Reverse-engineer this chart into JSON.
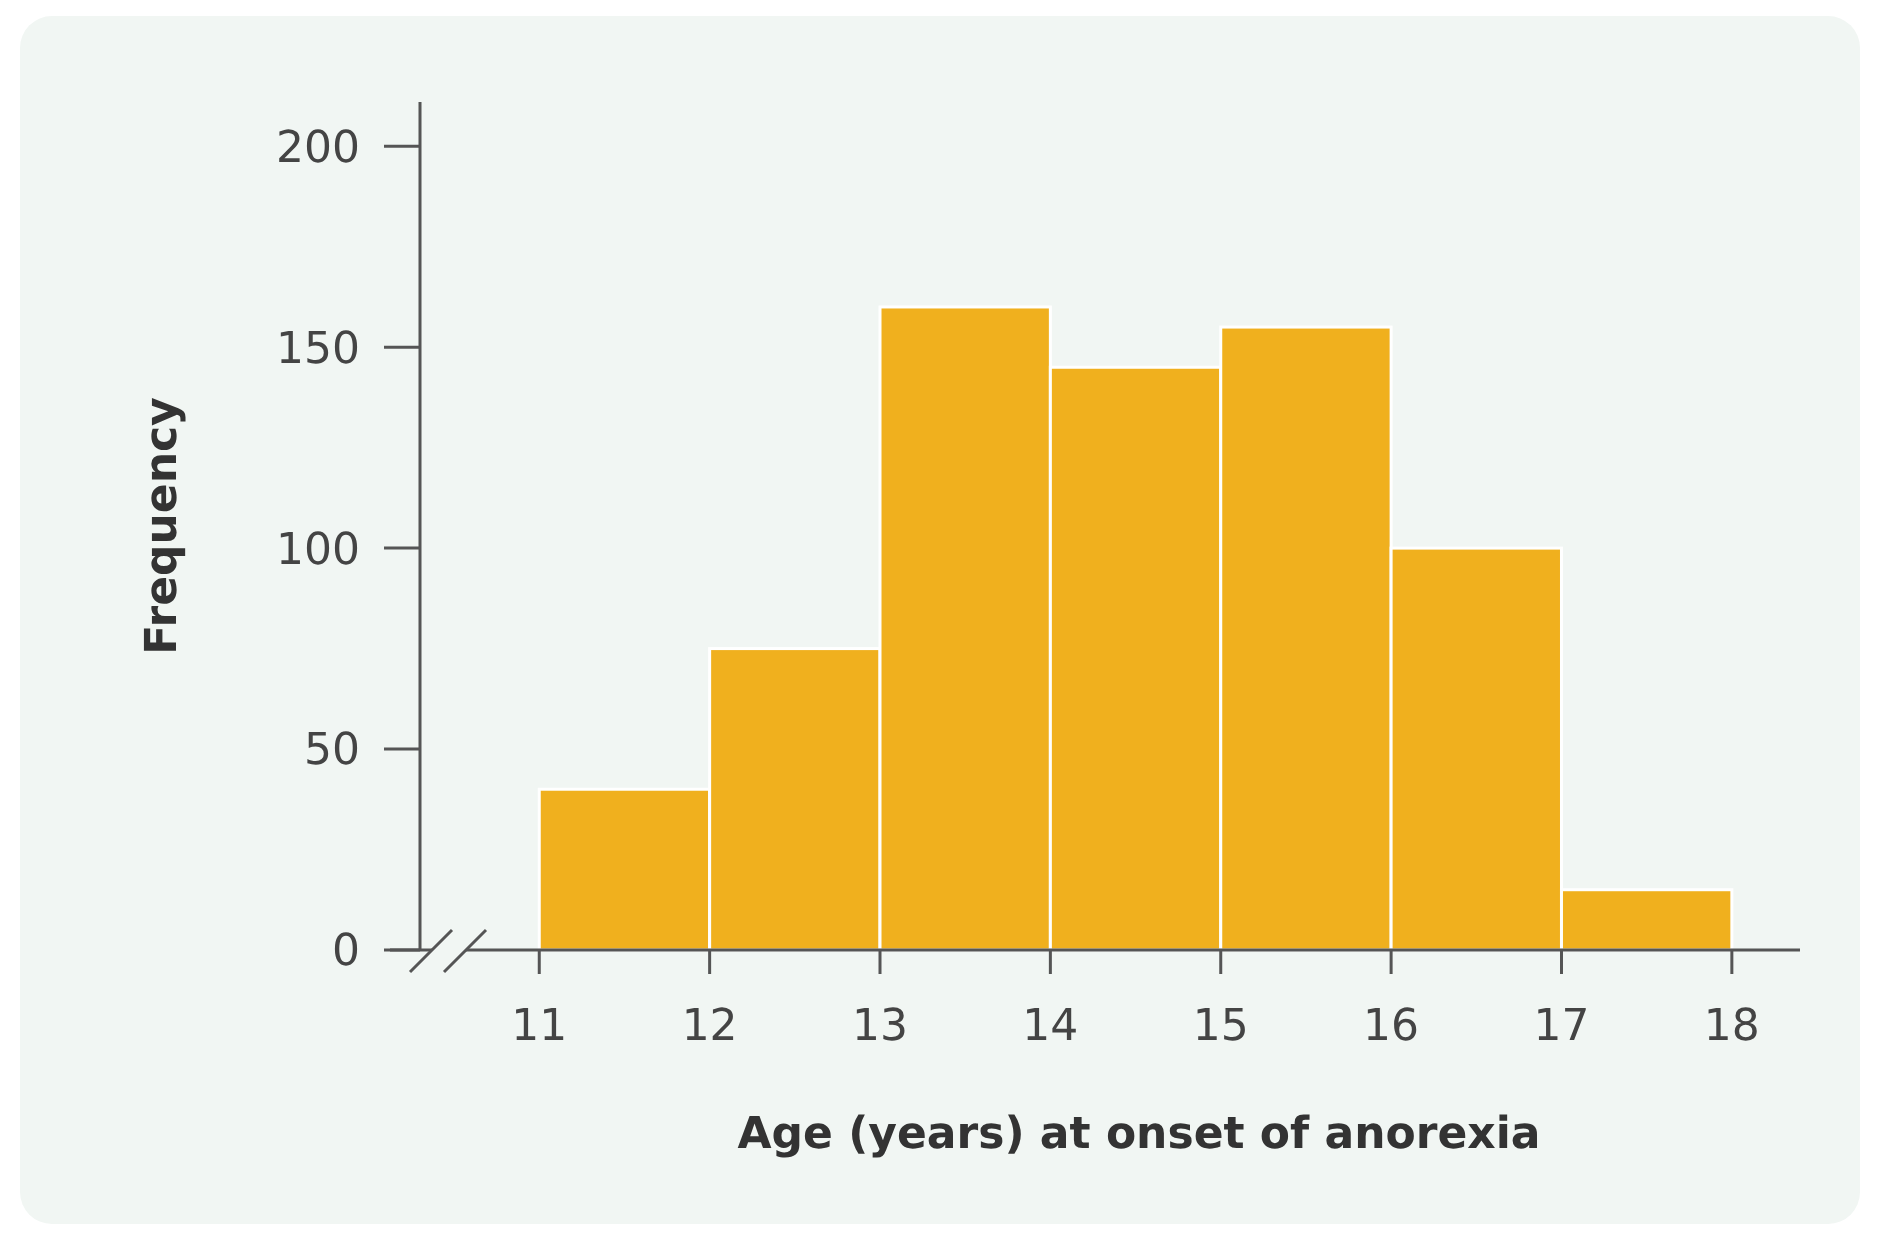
{
  "chart_data": {
    "type": "histogram",
    "xlabel": "Age (years) at onset of anorexia",
    "ylabel": "Frequency",
    "bins": [
      11,
      12,
      13,
      14,
      15,
      16,
      17,
      18
    ],
    "values": [
      40,
      75,
      160,
      145,
      155,
      100,
      15
    ],
    "color": "#f0b01e",
    "xlim": [
      10.3,
      18.4
    ],
    "xticks": [
      11,
      12,
      13,
      14,
      15,
      16,
      17,
      18
    ],
    "ylim": [
      0,
      211
    ],
    "yticks": [
      0,
      50,
      100,
      150,
      200
    ],
    "grid": false
  }
}
